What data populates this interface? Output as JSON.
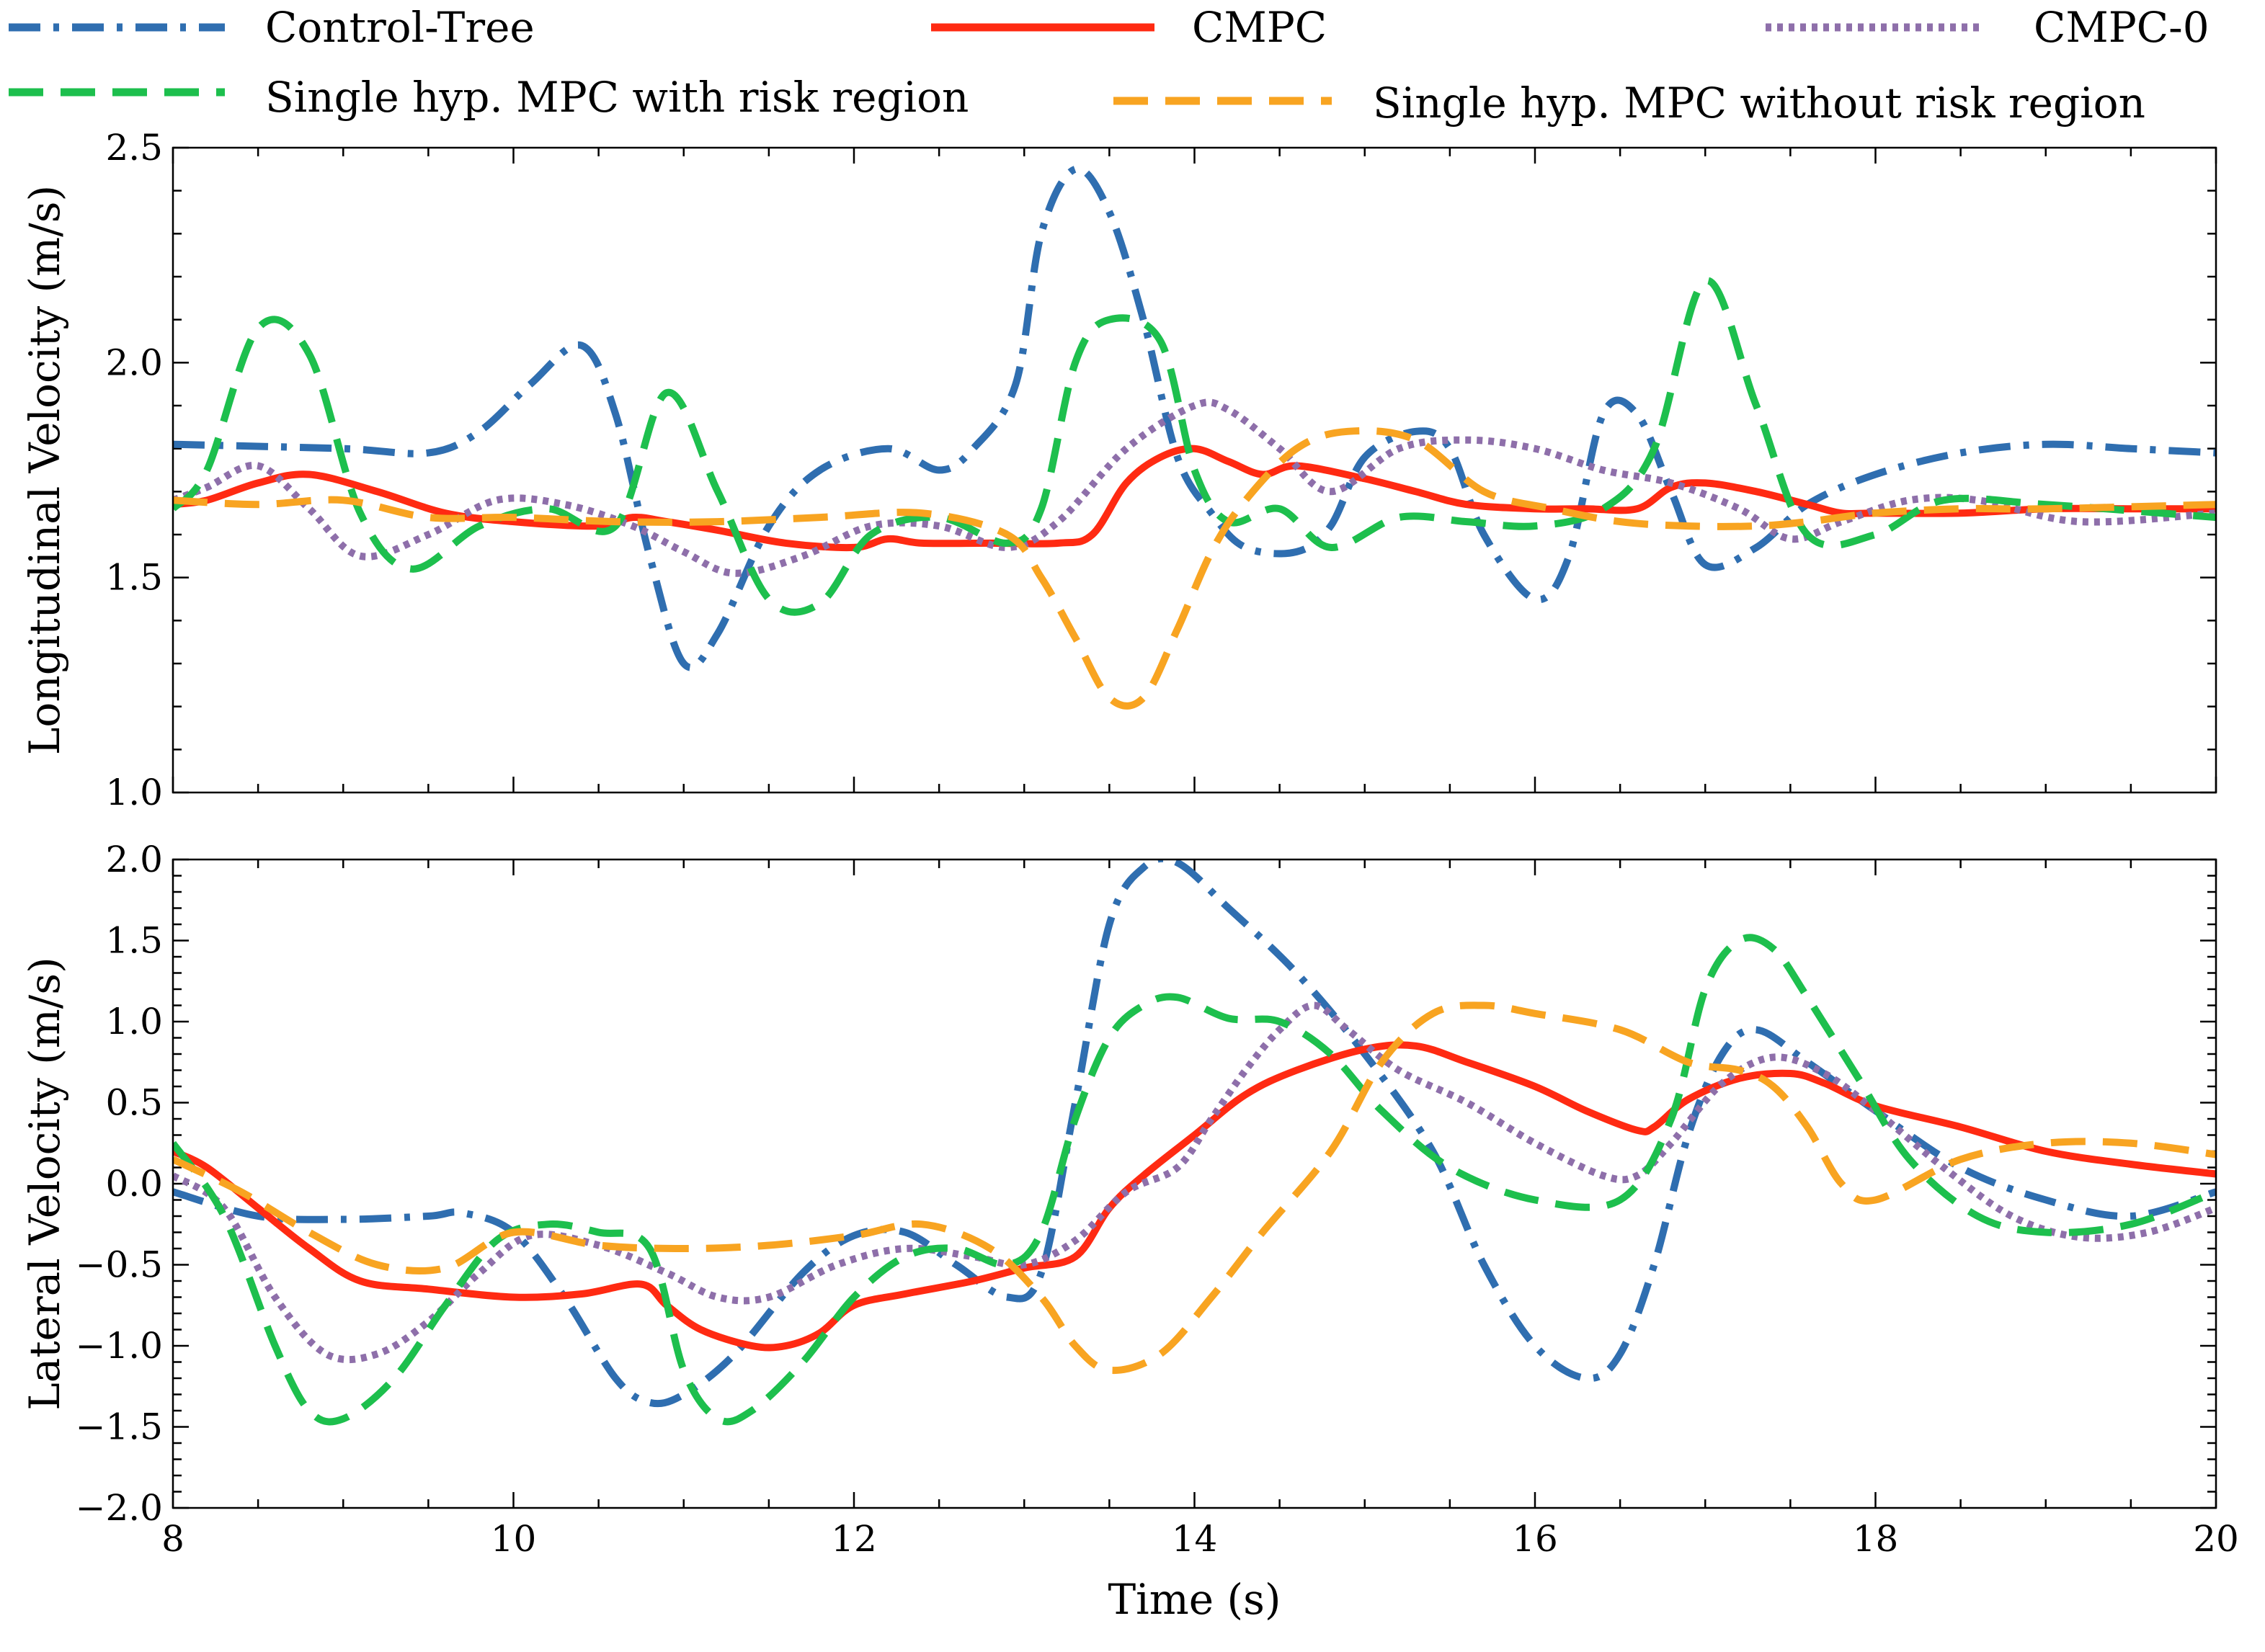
{
  "legend": [
    {
      "key": "control_tree",
      "label": "Control-Tree"
    },
    {
      "key": "cmpc",
      "label": "CMPC"
    },
    {
      "key": "cmpc0",
      "label": "CMPC-0"
    },
    {
      "key": "single_risk",
      "label": "Single hyp. MPC with risk region"
    },
    {
      "key": "single_norisk",
      "label": "Single hyp. MPC without risk region"
    }
  ],
  "styles": {
    "control_tree": {
      "color": "#2F6EB0",
      "dash": "dashdot"
    },
    "cmpc": {
      "color": "#FF2A12",
      "dash": "solid"
    },
    "cmpc0": {
      "color": "#8E6FAA",
      "dash": "dotted"
    },
    "single_risk": {
      "color": "#1DBF4D",
      "dash": "dashed"
    },
    "single_norisk": {
      "color": "#F8A421",
      "dash": "dashed"
    }
  },
  "chart_data": [
    {
      "type": "line",
      "title": "",
      "xlabel": "",
      "ylabel": "Longitudinal Velocity (m/s)",
      "xlim": [
        8,
        20
      ],
      "ylim": [
        1.0,
        2.5
      ],
      "xticks": [
        8,
        10,
        12,
        14,
        16,
        18,
        20
      ],
      "show_xtick_labels": false,
      "yticks": [
        1.0,
        1.5,
        2.0,
        2.5
      ],
      "ytick_labels": [
        "1.0",
        "1.5",
        "2.0",
        "2.5"
      ],
      "series": [
        {
          "key": "control_tree",
          "name": "Control-Tree",
          "x": [
            8,
            9,
            9.5,
            9.8,
            10.1,
            10.4,
            10.6,
            10.8,
            11.0,
            11.2,
            11.5,
            11.8,
            12.2,
            12.5,
            12.7,
            12.95,
            13.1,
            13.3,
            13.5,
            13.7,
            13.9,
            14.1,
            14.3,
            14.6,
            14.8,
            15.0,
            15.3,
            15.5,
            15.7,
            16.0,
            16.2,
            16.4,
            16.6,
            16.8,
            17.0,
            17.3,
            17.6,
            18.0,
            18.5,
            19.0,
            19.5,
            20
          ],
          "y": [
            1.81,
            1.8,
            1.79,
            1.84,
            1.95,
            2.04,
            1.88,
            1.55,
            1.3,
            1.37,
            1.62,
            1.75,
            1.8,
            1.75,
            1.8,
            1.95,
            2.3,
            2.45,
            2.35,
            2.1,
            1.78,
            1.65,
            1.57,
            1.56,
            1.62,
            1.78,
            1.84,
            1.8,
            1.6,
            1.45,
            1.55,
            1.88,
            1.88,
            1.7,
            1.53,
            1.57,
            1.67,
            1.74,
            1.79,
            1.81,
            1.8,
            1.79
          ]
        },
        {
          "key": "cmpc",
          "name": "CMPC",
          "x": [
            8,
            8.2,
            8.5,
            8.8,
            9.2,
            9.6,
            10.0,
            10.5,
            10.7,
            10.9,
            11.2,
            11.6,
            12.0,
            12.2,
            12.4,
            12.8,
            13.2,
            13.4,
            13.6,
            13.8,
            14.0,
            14.2,
            14.4,
            14.6,
            15.0,
            15.3,
            15.6,
            16.0,
            16.3,
            16.6,
            16.8,
            17.0,
            17.3,
            17.6,
            17.8,
            18.0,
            18.5,
            19.0,
            19.5,
            20
          ],
          "y": [
            1.67,
            1.68,
            1.72,
            1.74,
            1.7,
            1.65,
            1.63,
            1.62,
            1.64,
            1.63,
            1.61,
            1.58,
            1.57,
            1.59,
            1.58,
            1.58,
            1.58,
            1.6,
            1.72,
            1.78,
            1.8,
            1.77,
            1.74,
            1.76,
            1.73,
            1.7,
            1.67,
            1.66,
            1.66,
            1.66,
            1.71,
            1.72,
            1.7,
            1.67,
            1.65,
            1.65,
            1.65,
            1.66,
            1.66,
            1.66
          ]
        },
        {
          "key": "cmpc0",
          "name": "CMPC-0",
          "x": [
            8,
            8.2,
            8.5,
            8.8,
            9.1,
            9.5,
            9.9,
            10.3,
            10.7,
            11.0,
            11.3,
            11.7,
            12.1,
            12.5,
            12.9,
            13.2,
            13.6,
            14.0,
            14.2,
            14.5,
            14.8,
            15.2,
            15.6,
            16.0,
            16.4,
            16.8,
            17.2,
            17.5,
            17.8,
            18.2,
            18.6,
            19.2,
            20
          ],
          "y": [
            1.68,
            1.71,
            1.76,
            1.66,
            1.55,
            1.6,
            1.68,
            1.67,
            1.62,
            1.56,
            1.51,
            1.55,
            1.62,
            1.62,
            1.57,
            1.63,
            1.8,
            1.9,
            1.89,
            1.8,
            1.7,
            1.8,
            1.82,
            1.8,
            1.75,
            1.72,
            1.66,
            1.59,
            1.63,
            1.68,
            1.68,
            1.63,
            1.65
          ]
        },
        {
          "key": "single_risk",
          "name": "Single hyp. MPC with risk region",
          "x": [
            8,
            8.2,
            8.5,
            8.8,
            9.1,
            9.4,
            9.8,
            10.2,
            10.6,
            10.9,
            11.2,
            11.5,
            11.8,
            12.1,
            12.5,
            12.9,
            13.1,
            13.3,
            13.5,
            13.8,
            14.0,
            14.2,
            14.5,
            14.8,
            15.2,
            15.6,
            16.0,
            16.4,
            16.7,
            17.0,
            17.3,
            17.6,
            18.0,
            18.4,
            19.0,
            20
          ],
          "y": [
            1.66,
            1.75,
            2.08,
            2.02,
            1.65,
            1.52,
            1.62,
            1.66,
            1.62,
            1.93,
            1.7,
            1.45,
            1.44,
            1.6,
            1.64,
            1.58,
            1.66,
            2.0,
            2.1,
            2.05,
            1.75,
            1.63,
            1.66,
            1.57,
            1.64,
            1.63,
            1.62,
            1.66,
            1.8,
            2.19,
            1.9,
            1.6,
            1.6,
            1.68,
            1.67,
            1.64
          ]
        },
        {
          "key": "single_norisk",
          "name": "Single hyp. MPC without risk region",
          "x": [
            8,
            8.5,
            9.0,
            9.5,
            10.0,
            10.6,
            11.2,
            11.8,
            12.4,
            12.9,
            13.1,
            13.3,
            13.5,
            13.7,
            13.9,
            14.1,
            14.3,
            14.6,
            14.9,
            15.3,
            15.7,
            16.1,
            16.5,
            16.9,
            17.3,
            17.6,
            18.0,
            18.5,
            19.0,
            20
          ],
          "y": [
            1.68,
            1.67,
            1.68,
            1.64,
            1.64,
            1.63,
            1.63,
            1.64,
            1.65,
            1.6,
            1.5,
            1.36,
            1.22,
            1.22,
            1.38,
            1.56,
            1.68,
            1.8,
            1.84,
            1.82,
            1.7,
            1.66,
            1.63,
            1.62,
            1.62,
            1.63,
            1.65,
            1.66,
            1.66,
            1.67
          ]
        }
      ]
    },
    {
      "type": "line",
      "title": "",
      "xlabel": "Time (s)",
      "ylabel": "Lateral Velocity (m/s)",
      "xlim": [
        8,
        20
      ],
      "ylim": [
        -2.0,
        2.0
      ],
      "xticks": [
        8,
        10,
        12,
        14,
        16,
        18,
        20
      ],
      "xtick_labels": [
        "8",
        "10",
        "12",
        "14",
        "16",
        "18",
        "20"
      ],
      "show_xtick_labels": true,
      "yticks": [
        -2.0,
        -1.5,
        -1.0,
        -0.5,
        0.0,
        0.5,
        1.0,
        1.5,
        2.0
      ],
      "ytick_labels": [
        "−2.0",
        "−1.5",
        "−1.0",
        "−0.5",
        "0.0",
        "0.5",
        "1.0",
        "1.5",
        "2.0"
      ],
      "series": [
        {
          "key": "control_tree",
          "name": "Control-Tree",
          "x": [
            8,
            8.5,
            9,
            9.5,
            9.7,
            10.0,
            10.3,
            10.6,
            10.8,
            11.0,
            11.3,
            11.7,
            12.0,
            12.3,
            12.6,
            12.9,
            13.1,
            13.3,
            13.5,
            13.7,
            13.9,
            14.2,
            14.6,
            15.0,
            15.4,
            15.7,
            16.0,
            16.3,
            16.5,
            16.7,
            16.9,
            17.1,
            17.3,
            17.6,
            18.0,
            18.5,
            19.0,
            19.5,
            20
          ],
          "y": [
            -0.05,
            -0.2,
            -0.22,
            -0.2,
            -0.18,
            -0.3,
            -0.7,
            -1.2,
            -1.35,
            -1.3,
            -1.05,
            -0.55,
            -0.32,
            -0.3,
            -0.5,
            -0.7,
            -0.55,
            0.5,
            1.6,
            1.95,
            1.98,
            1.7,
            1.3,
            0.8,
            0.2,
            -0.5,
            -1.0,
            -1.2,
            -1.05,
            -0.5,
            0.3,
            0.8,
            0.95,
            0.75,
            0.45,
            0.1,
            -0.1,
            -0.2,
            -0.05
          ]
        },
        {
          "key": "cmpc",
          "name": "CMPC",
          "x": [
            8,
            8.2,
            8.5,
            8.8,
            9.1,
            9.5,
            10.0,
            10.4,
            10.75,
            10.9,
            11.1,
            11.4,
            11.6,
            11.8,
            12.0,
            12.3,
            12.7,
            13.0,
            13.3,
            13.5,
            13.7,
            14.0,
            14.3,
            14.6,
            15.0,
            15.3,
            15.6,
            16.0,
            16.3,
            16.6,
            16.7,
            16.9,
            17.2,
            17.5,
            17.7,
            18.0,
            18.5,
            19.0,
            19.5,
            20
          ],
          "y": [
            0.2,
            0.1,
            -0.15,
            -0.4,
            -0.6,
            -0.65,
            -0.7,
            -0.68,
            -0.62,
            -0.75,
            -0.9,
            -1.0,
            -1.0,
            -0.92,
            -0.75,
            -0.68,
            -0.6,
            -0.52,
            -0.45,
            -0.15,
            0.05,
            0.3,
            0.55,
            0.7,
            0.83,
            0.85,
            0.75,
            0.6,
            0.45,
            0.33,
            0.35,
            0.52,
            0.65,
            0.68,
            0.62,
            0.48,
            0.35,
            0.2,
            0.12,
            0.06
          ]
        },
        {
          "key": "cmpc0",
          "name": "CMPC-0",
          "x": [
            8,
            8.3,
            8.6,
            8.9,
            9.2,
            9.5,
            9.8,
            10.1,
            10.5,
            10.9,
            11.2,
            11.5,
            11.9,
            12.3,
            12.7,
            13.0,
            13.3,
            13.6,
            13.9,
            14.1,
            14.3,
            14.5,
            14.7,
            14.9,
            15.2,
            15.6,
            16.0,
            16.4,
            16.6,
            16.8,
            17.1,
            17.4,
            17.7,
            18.0,
            18.4,
            18.8,
            19.2,
            19.6,
            20
          ],
          "y": [
            0.05,
            -0.15,
            -0.7,
            -1.05,
            -1.05,
            -0.85,
            -0.55,
            -0.32,
            -0.38,
            -0.55,
            -0.7,
            -0.7,
            -0.5,
            -0.4,
            -0.45,
            -0.5,
            -0.35,
            -0.05,
            0.1,
            0.4,
            0.7,
            0.95,
            1.1,
            0.95,
            0.7,
            0.5,
            0.25,
            0.05,
            0.05,
            0.25,
            0.62,
            0.78,
            0.68,
            0.45,
            0.1,
            -0.2,
            -0.33,
            -0.3,
            -0.15
          ]
        },
        {
          "key": "single_risk",
          "name": "Single hyp. MPC with risk region",
          "x": [
            8,
            8.3,
            8.6,
            8.8,
            9.0,
            9.3,
            9.6,
            9.9,
            10.2,
            10.5,
            10.8,
            11.0,
            11.2,
            11.4,
            11.7,
            12.0,
            12.3,
            12.6,
            12.9,
            13.1,
            13.3,
            13.5,
            13.7,
            13.9,
            14.2,
            14.5,
            14.8,
            15.1,
            15.5,
            16.0,
            16.5,
            16.8,
            17.0,
            17.2,
            17.4,
            17.6,
            17.9,
            18.2,
            18.6,
            19.0,
            19.5,
            20
          ],
          "y": [
            0.25,
            -0.2,
            -1.0,
            -1.4,
            -1.45,
            -1.2,
            -0.75,
            -0.35,
            -0.25,
            -0.3,
            -0.4,
            -1.15,
            -1.45,
            -1.4,
            -1.1,
            -0.7,
            -0.45,
            -0.4,
            -0.5,
            -0.3,
            0.4,
            0.9,
            1.1,
            1.15,
            1.02,
            1.0,
            0.8,
            0.45,
            0.1,
            -0.1,
            -0.1,
            0.4,
            1.2,
            1.5,
            1.45,
            1.15,
            0.65,
            0.15,
            -0.2,
            -0.3,
            -0.25,
            -0.05
          ]
        },
        {
          "key": "single_norisk",
          "name": "Single hyp. MPC without risk region",
          "x": [
            8,
            8.4,
            8.8,
            9.2,
            9.6,
            10.0,
            10.5,
            11.0,
            11.5,
            12.0,
            12.4,
            12.8,
            13.1,
            13.3,
            13.5,
            13.8,
            14.1,
            14.4,
            14.8,
            15.1,
            15.4,
            15.7,
            16.0,
            16.5,
            16.9,
            17.2,
            17.4,
            17.6,
            17.8,
            18.0,
            18.5,
            19.0,
            19.5,
            20
          ],
          "y": [
            0.15,
            -0.05,
            -0.3,
            -0.5,
            -0.52,
            -0.3,
            -0.38,
            -0.4,
            -0.38,
            -0.32,
            -0.25,
            -0.4,
            -0.7,
            -1.0,
            -1.15,
            -1.05,
            -0.7,
            -0.3,
            0.2,
            0.75,
            1.05,
            1.1,
            1.05,
            0.95,
            0.75,
            0.7,
            0.6,
            0.35,
            0.0,
            -0.1,
            0.15,
            0.25,
            0.25,
            0.18
          ]
        }
      ]
    }
  ]
}
